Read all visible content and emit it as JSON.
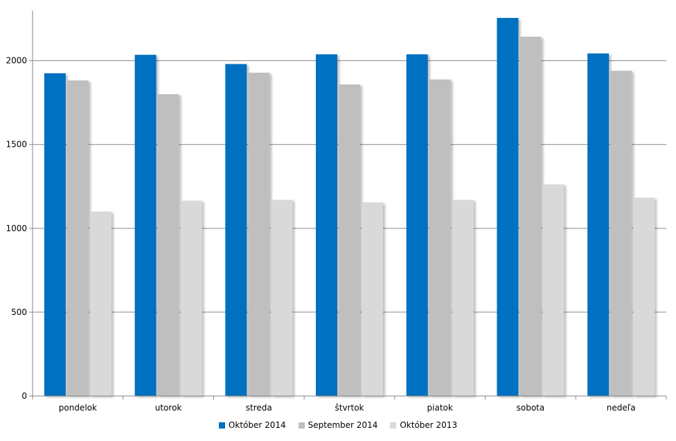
{
  "chart_data": {
    "type": "bar",
    "categories": [
      "pondelok",
      "utorok",
      "streda",
      "štvrtok",
      "piatok",
      "sobota",
      "nedeľa"
    ],
    "series": [
      {
        "name": "Október 2014",
        "color": "#0070C0",
        "values": [
          1925,
          2035,
          1980,
          2038,
          2038,
          2255,
          2043
        ]
      },
      {
        "name": "September 2014",
        "color": "#BFBFBF",
        "values": [
          1882,
          1800,
          1928,
          1858,
          1888,
          2143,
          1940
        ]
      },
      {
        "name": "Október 2013",
        "color": "#D9D9D9",
        "values": [
          1100,
          1165,
          1170,
          1155,
          1170,
          1262,
          1183
        ]
      }
    ],
    "yticks": [
      0,
      500,
      1000,
      1500,
      2000
    ],
    "ylim": [
      0,
      2300
    ],
    "grid": true,
    "legend_position": "bottom"
  }
}
